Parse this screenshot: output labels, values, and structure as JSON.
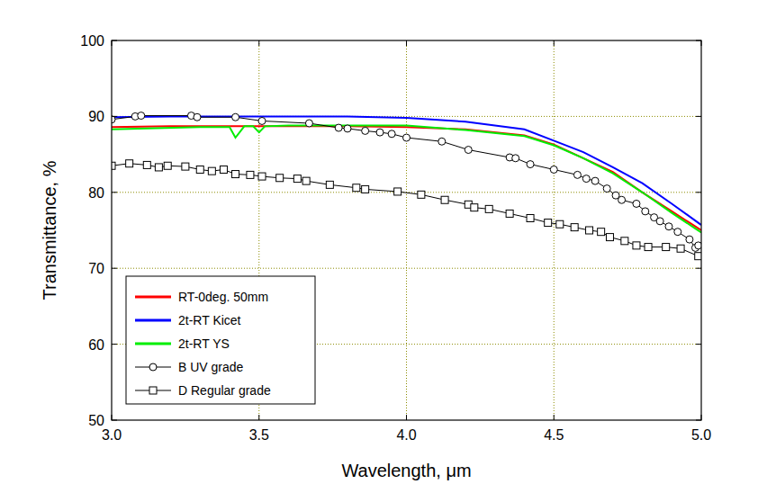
{
  "chart_data": {
    "type": "line",
    "x_label": "Wavelength, μm",
    "y_label": "Transmittance, %",
    "xlim": [
      3.0,
      5.0
    ],
    "xticks": [
      {
        "value": 3.0,
        "label": "3.0"
      },
      {
        "value": 3.5,
        "label": "3.5"
      },
      {
        "value": 4.0,
        "label": "4.0"
      },
      {
        "value": 4.5,
        "label": "4.5"
      },
      {
        "value": 5.0,
        "label": "5.0"
      }
    ],
    "ylim": [
      50,
      100
    ],
    "yticks": [
      50,
      60,
      70,
      80,
      90,
      100
    ],
    "grid": true,
    "legend": "lower left",
    "series": [
      {
        "name": "RT-0deg. 50mm",
        "color": "#ff0000",
        "marker": "none",
        "line_style": "solid",
        "x": [
          3.0,
          3.2,
          3.5,
          3.8,
          4.0,
          4.2,
          4.4,
          4.5,
          4.6,
          4.7,
          4.8,
          4.9,
          5.0
        ],
        "values": [
          88.6,
          88.7,
          88.7,
          88.7,
          88.6,
          88.3,
          87.5,
          86.3,
          84.5,
          82.7,
          80.0,
          77.5,
          75.0
        ]
      },
      {
        "name": "2t-RT Kicet",
        "color": "#0000ff",
        "marker": "none",
        "line_style": "solid",
        "x": [
          3.0,
          3.2,
          3.5,
          3.8,
          4.0,
          4.2,
          4.4,
          4.5,
          4.6,
          4.7,
          4.8,
          4.9,
          5.0
        ],
        "values": [
          89.9,
          90.0,
          90.0,
          90.0,
          89.8,
          89.3,
          88.3,
          86.8,
          85.3,
          83.3,
          81.2,
          78.5,
          75.7
        ]
      },
      {
        "name": "2t-RT YS",
        "color": "#00ee00",
        "marker": "none",
        "line_style": "solid",
        "x": [
          3.0,
          3.3,
          3.4,
          3.42,
          3.45,
          3.48,
          3.5,
          3.52,
          3.6,
          4.0,
          4.2,
          4.4,
          4.5,
          4.6,
          4.7,
          4.8,
          4.9,
          5.0
        ],
        "values": [
          88.3,
          88.6,
          88.6,
          87.2,
          88.7,
          88.7,
          87.9,
          88.7,
          88.8,
          88.8,
          88.2,
          87.4,
          86.2,
          84.5,
          82.5,
          80.0,
          77.3,
          74.7
        ]
      },
      {
        "name": "B UV grade",
        "color": "#000000",
        "marker": "circle",
        "line_style": "solid",
        "x": [
          3.0,
          3.08,
          3.1,
          3.27,
          3.29,
          3.42,
          3.51,
          3.67,
          3.77,
          3.8,
          3.86,
          3.91,
          3.95,
          4.0,
          4.12,
          4.21,
          4.35,
          4.37,
          4.42,
          4.5,
          4.58,
          4.61,
          4.64,
          4.68,
          4.71,
          4.73,
          4.78,
          4.81,
          4.84,
          4.86,
          4.89,
          4.92,
          4.96,
          4.98,
          4.99
        ],
        "values": [
          89.6,
          90.0,
          90.1,
          90.1,
          89.9,
          89.9,
          89.4,
          89.1,
          88.5,
          88.4,
          88.1,
          87.9,
          87.7,
          87.2,
          86.7,
          85.6,
          84.6,
          84.5,
          83.7,
          83.0,
          82.3,
          81.8,
          81.5,
          80.5,
          79.6,
          79.0,
          78.5,
          77.5,
          76.7,
          76.2,
          75.5,
          74.8,
          73.8,
          72.7,
          73.0
        ]
      },
      {
        "name": "D Regular grade",
        "color": "#000000",
        "marker": "square",
        "line_style": "solid",
        "x": [
          3.0,
          3.06,
          3.12,
          3.16,
          3.19,
          3.25,
          3.3,
          3.34,
          3.38,
          3.42,
          3.47,
          3.51,
          3.57,
          3.63,
          3.66,
          3.74,
          3.83,
          3.86,
          3.97,
          4.05,
          4.13,
          4.21,
          4.23,
          4.28,
          4.35,
          4.42,
          4.48,
          4.52,
          4.57,
          4.62,
          4.66,
          4.69,
          4.74,
          4.78,
          4.82,
          4.88,
          4.93,
          4.99
        ],
        "values": [
          83.5,
          83.8,
          83.6,
          83.3,
          83.5,
          83.4,
          83.0,
          82.8,
          83.0,
          82.4,
          82.3,
          82.1,
          81.9,
          81.8,
          81.5,
          81.0,
          80.6,
          80.4,
          80.1,
          79.7,
          79.0,
          78.4,
          78.0,
          77.8,
          77.2,
          76.6,
          76.0,
          75.8,
          75.4,
          75.0,
          74.8,
          74.1,
          73.6,
          73.0,
          72.8,
          72.8,
          72.6,
          71.6
        ]
      }
    ]
  }
}
